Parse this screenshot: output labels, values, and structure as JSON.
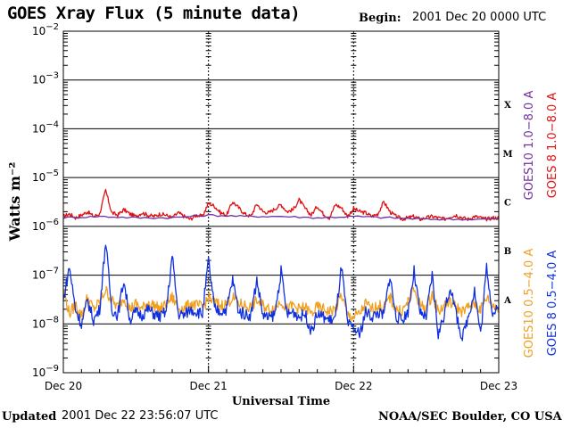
{
  "header": {
    "title": "GOES Xray Flux (5 minute data)",
    "begin_label": "Begin:",
    "begin_value": "2001 Dec 20 0000 UTC"
  },
  "footer": {
    "updated_label": "Updated",
    "updated_value": "2001 Dec 22 23:56:07 UTC",
    "source": "NOAA/SEC Boulder, CO USA"
  },
  "chart_data": {
    "type": "line",
    "title": "GOES Xray Flux (5 minute data)",
    "xlabel": "Universal Time",
    "ylabel": "Watts m⁻²",
    "yscale": "log",
    "ylim": [
      1e-09,
      0.01
    ],
    "y_ticks": [
      {
        "base": "10",
        "exp": "−2"
      },
      {
        "base": "10",
        "exp": "−3"
      },
      {
        "base": "10",
        "exp": "−4"
      },
      {
        "base": "10",
        "exp": "−5"
      },
      {
        "base": "10",
        "exp": "−6"
      },
      {
        "base": "10",
        "exp": "−7"
      },
      {
        "base": "10",
        "exp": "−8"
      },
      {
        "base": "10",
        "exp": "−9"
      }
    ],
    "x_ticks": [
      "Dec 20",
      "Dec 21",
      "Dec 22",
      "Dec 23"
    ],
    "xlim_hours": [
      0,
      72
    ],
    "grid": true,
    "flare_classes": [
      "X",
      "M",
      "C",
      "B",
      "A"
    ],
    "legend": {
      "placement": "right",
      "entries": [
        {
          "label": "GOES10 1.0−8.0 A",
          "color": "#7030a0"
        },
        {
          "label": "GOES 8 1.0−8.0 A",
          "color": "#e01010"
        },
        {
          "label": "GOES10 0.5−4.0 A",
          "color": "#f0a020"
        },
        {
          "label": "GOES 8 0.5−4.0 A",
          "color": "#1030e0"
        }
      ]
    },
    "series": [
      {
        "name": "GOES 8 1.0−8.0 A",
        "color": "#e01010",
        "x_hours": [
          0,
          1,
          2,
          3,
          4,
          5,
          6,
          7,
          8,
          9,
          10,
          11,
          12,
          13,
          14,
          15,
          16,
          17,
          18,
          19,
          20,
          21,
          22,
          23,
          24,
          25,
          26,
          27,
          28,
          29,
          30,
          31,
          32,
          33,
          34,
          35,
          36,
          37,
          38,
          39,
          40,
          41,
          42,
          43,
          44,
          45,
          46,
          47,
          48,
          49,
          50,
          51,
          52,
          53,
          54,
          55,
          56,
          57,
          58,
          59,
          60,
          61,
          62,
          63,
          64,
          65,
          66,
          67,
          68,
          69,
          70,
          71,
          72
        ],
        "y": [
          1.6e-06,
          1.8e-06,
          1.5e-06,
          1.7e-06,
          2e-06,
          1.6e-06,
          1.8e-06,
          5.5e-06,
          1.9e-06,
          1.7e-06,
          2.2e-06,
          1.8e-06,
          1.6e-06,
          1.9e-06,
          1.7e-06,
          1.6e-06,
          1.8e-06,
          1.7e-06,
          1.5e-06,
          1.9e-06,
          1.6e-06,
          1.4e-06,
          1.7e-06,
          1.6e-06,
          3e-06,
          2.6e-06,
          1.9e-06,
          1.7e-06,
          3.2e-06,
          2.4e-06,
          1.8e-06,
          1.6e-06,
          2.9e-06,
          2e-06,
          1.9e-06,
          2.3e-06,
          2.8e-06,
          2e-06,
          2.2e-06,
          3.5e-06,
          2.3e-06,
          1.7e-06,
          2.6e-06,
          1.8e-06,
          1.5e-06,
          2.8e-06,
          2.4e-06,
          1.6e-06,
          2.3e-06,
          2e-06,
          1.9e-06,
          1.6e-06,
          1.8e-06,
          3.2e-06,
          2e-06,
          1.6e-06,
          1.4e-06,
          1.5e-06,
          1.6e-06,
          1.4e-06,
          1.5e-06,
          1.6e-06,
          1.5e-06,
          1.4e-06,
          1.6e-06,
          1.7e-06,
          1.5e-06,
          1.4e-06,
          1.6e-06,
          1.5e-06,
          1.4e-06,
          1.5e-06,
          1.5e-06
        ]
      },
      {
        "name": "GOES10 1.0−8.0 A",
        "color": "#7030a0",
        "x_hours": [
          0,
          6,
          12,
          18,
          24,
          30,
          36,
          42,
          48,
          54,
          60,
          66,
          72
        ],
        "y": [
          1.5e-06,
          1.6e-06,
          1.5e-06,
          1.5e-06,
          1.7e-06,
          1.6e-06,
          1.6e-06,
          1.5e-06,
          1.6e-06,
          1.5e-06,
          1.4e-06,
          1.4e-06,
          1.4e-06
        ]
      },
      {
        "name": "GOES10 0.5−4.0 A",
        "color": "#f0a020",
        "x_hours": [
          0,
          1,
          2,
          3,
          4,
          5,
          6,
          7,
          8,
          9,
          10,
          11,
          12,
          13,
          14,
          15,
          16,
          17,
          18,
          19,
          20,
          21,
          22,
          23,
          24,
          25,
          26,
          27,
          28,
          29,
          30,
          31,
          32,
          33,
          34,
          35,
          36,
          37,
          38,
          39,
          40,
          41,
          42,
          43,
          44,
          45,
          46,
          47,
          48,
          49,
          50,
          51,
          52,
          53,
          54,
          55,
          56,
          57,
          58,
          59,
          60,
          61,
          62,
          63,
          64,
          65,
          66,
          67,
          68,
          69,
          70,
          71,
          72
        ],
        "y": [
          5e-08,
          1.6e-08,
          2.5e-08,
          1.5e-08,
          3.5e-08,
          2e-08,
          2.8e-08,
          5e-08,
          3e-08,
          2.2e-08,
          3.5e-08,
          2e-08,
          2.6e-08,
          2e-08,
          2.8e-08,
          2.4e-08,
          2e-08,
          2.5e-08,
          3.5e-08,
          2.2e-08,
          2e-08,
          2.6e-08,
          2.4e-08,
          2.2e-08,
          3.5e-08,
          2.8e-08,
          2.4e-08,
          2.6e-08,
          3.5e-08,
          2.6e-08,
          2.4e-08,
          2.2e-08,
          3e-08,
          2.4e-08,
          2e-08,
          2.2e-08,
          3e-08,
          2e-08,
          2.4e-08,
          2e-08,
          2.2e-08,
          1.6e-08,
          2.2e-08,
          2e-08,
          1.8e-08,
          2e-08,
          4e-08,
          1.5e-08,
          1.4e-08,
          1.6e-08,
          2.6e-08,
          2e-08,
          2.4e-08,
          2.2e-08,
          3.5e-08,
          2e-08,
          1.8e-08,
          2.8e-08,
          5e-08,
          2.4e-08,
          2.2e-08,
          4e-08,
          1.8e-08,
          2.4e-08,
          2.8e-08,
          2.2e-08,
          1.8e-08,
          2.2e-08,
          2.6e-08,
          2e-08,
          3.5e-08,
          2.4e-08,
          2.2e-08
        ]
      },
      {
        "name": "GOES 8 0.5−4.0 A",
        "color": "#1030e0",
        "x_hours": [
          0,
          1,
          2,
          3,
          4,
          5,
          6,
          7,
          8,
          9,
          10,
          11,
          12,
          13,
          14,
          15,
          16,
          17,
          18,
          19,
          20,
          21,
          22,
          23,
          24,
          25,
          26,
          27,
          28,
          29,
          30,
          31,
          32,
          33,
          34,
          35,
          36,
          37,
          38,
          39,
          40,
          41,
          42,
          43,
          44,
          45,
          46,
          47,
          48,
          49,
          50,
          51,
          52,
          53,
          54,
          55,
          56,
          57,
          58,
          59,
          60,
          61,
          62,
          63,
          64,
          65,
          66,
          67,
          68,
          69,
          70,
          71,
          72
        ],
        "y": [
          3e-08,
          1.5e-07,
          2e-08,
          1e-08,
          3e-08,
          1.2e-08,
          2e-08,
          5e-07,
          2e-08,
          1.5e-08,
          8e-08,
          1.2e-08,
          1.8e-08,
          1.5e-08,
          2e-08,
          1.6e-08,
          1.4e-08,
          1.8e-08,
          2.5e-07,
          1.6e-08,
          1.5e-08,
          2e-08,
          1.8e-08,
          1.6e-08,
          2e-07,
          2e-08,
          1.8e-08,
          2e-08,
          8e-08,
          1.8e-08,
          1.6e-08,
          1.5e-08,
          8e-08,
          1.5e-08,
          1.3e-08,
          1.6e-08,
          1.2e-07,
          1.5e-08,
          1.8e-08,
          1.4e-08,
          1.6e-08,
          7e-09,
          1.6e-08,
          1.4e-08,
          1.2e-08,
          1.3e-08,
          1.5e-07,
          1e-08,
          8e-09,
          6e-09,
          1.8e-08,
          1.4e-08,
          1.7e-08,
          1.5e-08,
          1e-07,
          1.4e-08,
          1.2e-08,
          1.8e-08,
          1.2e-07,
          1.6e-08,
          1.4e-08,
          1e-07,
          6e-09,
          1.6e-08,
          6e-08,
          1.5e-08,
          5e-09,
          1.5e-08,
          5e-08,
          6e-09,
          1.5e-07,
          1.6e-08,
          2e-08
        ]
      }
    ]
  }
}
